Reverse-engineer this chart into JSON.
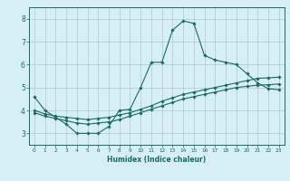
{
  "xlabel": "Humidex (Indice chaleur)",
  "bg_color": "#d6eff5",
  "grid_color": "#b0c8cc",
  "line_color": "#1a6b5e",
  "xlim": [
    -0.5,
    23.5
  ],
  "ylim": [
    2.5,
    8.5
  ],
  "xticks": [
    0,
    1,
    2,
    3,
    4,
    5,
    6,
    7,
    8,
    9,
    10,
    11,
    12,
    13,
    14,
    15,
    16,
    17,
    18,
    19,
    20,
    21,
    22,
    23
  ],
  "yticks": [
    3,
    4,
    5,
    6,
    7,
    8
  ],
  "line1_x": [
    0,
    1,
    2,
    3,
    4,
    5,
    6,
    7,
    8,
    9,
    10,
    11,
    12,
    13,
    14,
    15,
    16,
    17,
    18,
    19,
    20,
    21,
    22,
    23
  ],
  "line1_y": [
    4.6,
    4.0,
    3.7,
    3.4,
    3.0,
    3.0,
    3.0,
    3.3,
    4.0,
    4.05,
    5.0,
    6.1,
    6.1,
    7.5,
    7.9,
    7.8,
    6.4,
    6.2,
    6.1,
    6.0,
    5.6,
    5.2,
    4.95,
    4.9
  ],
  "line2_x": [
    0,
    1,
    2,
    3,
    4,
    5,
    6,
    7,
    8,
    9,
    10,
    11,
    12,
    13,
    14,
    15,
    16,
    17,
    18,
    19,
    20,
    21,
    22,
    23
  ],
  "line2_y": [
    4.0,
    3.85,
    3.75,
    3.7,
    3.65,
    3.6,
    3.65,
    3.7,
    3.8,
    3.9,
    4.05,
    4.2,
    4.4,
    4.55,
    4.7,
    4.8,
    4.9,
    5.0,
    5.1,
    5.2,
    5.3,
    5.4,
    5.42,
    5.45
  ],
  "line3_x": [
    0,
    1,
    2,
    3,
    4,
    5,
    6,
    7,
    8,
    9,
    10,
    11,
    12,
    13,
    14,
    15,
    16,
    17,
    18,
    19,
    20,
    21,
    22,
    23
  ],
  "line3_y": [
    3.9,
    3.75,
    3.65,
    3.55,
    3.45,
    3.4,
    3.45,
    3.5,
    3.6,
    3.75,
    3.9,
    4.05,
    4.2,
    4.35,
    4.5,
    4.6,
    4.7,
    4.8,
    4.9,
    5.0,
    5.05,
    5.1,
    5.12,
    5.15
  ]
}
